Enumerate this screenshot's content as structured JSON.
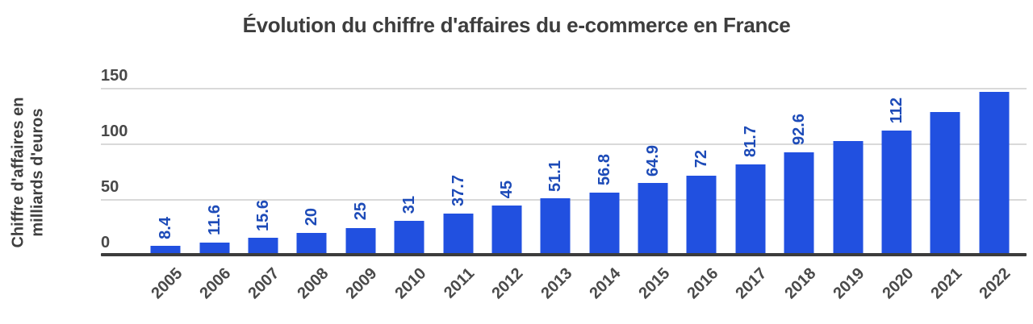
{
  "chart_data": {
    "type": "bar",
    "title": "Évolution du chiffre d'affaires du e-commerce en France",
    "ylabel_lines": [
      "Chiffre d'affaires en",
      "milliards d'euros"
    ],
    "xlabel": "",
    "categories": [
      "2005",
      "2006",
      "2007",
      "2008",
      "2009",
      "2010",
      "2011",
      "2012",
      "2013",
      "2014",
      "2015",
      "2016",
      "2017",
      "2018",
      "2019",
      "2020",
      "2021",
      "2022"
    ],
    "values": [
      8.4,
      11.6,
      15.6,
      20,
      25,
      31,
      37.7,
      45,
      51.1,
      56.8,
      64.9,
      72,
      81.7,
      92.6,
      103,
      112,
      129,
      147
    ],
    "bar_labels": [
      "8.4",
      "11.6",
      "15.6",
      "20",
      "25",
      "31",
      "37.7",
      "45",
      "51.1",
      "56.8",
      "64.9",
      "72",
      "81.7",
      "92.6",
      "",
      "112",
      "",
      ""
    ],
    "yticks": [
      0,
      50,
      100,
      150
    ],
    "ylim": [
      0,
      150
    ],
    "grid": true,
    "legend_position": "none",
    "colors": {
      "bar": "#2150e0",
      "bar_label": "#1d4bb8",
      "axis_text": "#484848",
      "title": "#3d3d3d",
      "gridline": "#d9d9d9",
      "baseline": "#3c3c3c"
    }
  }
}
